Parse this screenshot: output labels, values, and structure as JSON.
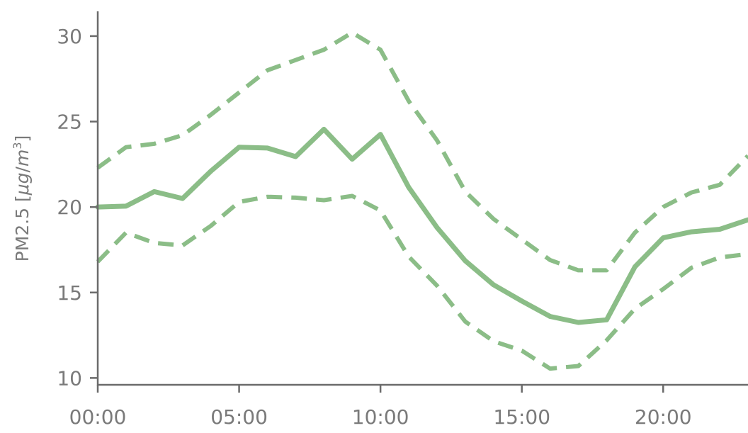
{
  "chart_data": {
    "type": "line",
    "title": "",
    "xlabel": "",
    "ylabel": "PM2.5 [μg/m³]",
    "ylabel_parts": {
      "prefix": "PM2.5 [",
      "mu": "μ",
      "g": "g",
      "slash": "/",
      "m": "m",
      "exp": "3",
      "suffix": "]"
    },
    "x": [
      0,
      1,
      2,
      3,
      4,
      5,
      6,
      7,
      8,
      9,
      10,
      11,
      12,
      13,
      14,
      15,
      16,
      17,
      18,
      19,
      20,
      21,
      22,
      23
    ],
    "x_ticks": [
      0,
      5,
      10,
      15,
      20
    ],
    "x_tick_labels": [
      "00:00",
      "05:00",
      "10:00",
      "15:00",
      "20:00"
    ],
    "xlim": [
      0,
      23
    ],
    "y_ticks": [
      10,
      15,
      20,
      25,
      30
    ],
    "y_tick_labels": [
      "10",
      "15",
      "20",
      "25",
      "30"
    ],
    "ylim": [
      9.6,
      31.2
    ],
    "grid": false,
    "color": "#8bbd87",
    "series": [
      {
        "style": "solid",
        "values": [
          20.0,
          20.05,
          20.9,
          20.5,
          22.1,
          23.5,
          23.45,
          22.95,
          24.55,
          22.8,
          24.25,
          21.15,
          18.8,
          16.85,
          15.45,
          14.5,
          13.6,
          13.25,
          13.4,
          16.5,
          18.2,
          18.55,
          18.7,
          19.25
        ]
      },
      {
        "style": "dashed",
        "values": [
          22.3,
          23.5,
          23.7,
          24.2,
          25.4,
          26.7,
          28.0,
          28.6,
          29.2,
          30.2,
          29.2,
          26.2,
          23.9,
          20.9,
          19.3,
          18.1,
          16.9,
          16.3,
          16.3,
          18.5,
          20.0,
          20.85,
          21.3,
          23.0
        ]
      },
      {
        "style": "dashed",
        "values": [
          16.8,
          18.5,
          17.9,
          17.75,
          18.9,
          20.3,
          20.6,
          20.55,
          20.4,
          20.65,
          19.8,
          17.1,
          15.4,
          13.3,
          12.15,
          11.6,
          10.55,
          10.7,
          12.2,
          14.05,
          15.2,
          16.45,
          17.05,
          17.25
        ]
      }
    ]
  }
}
